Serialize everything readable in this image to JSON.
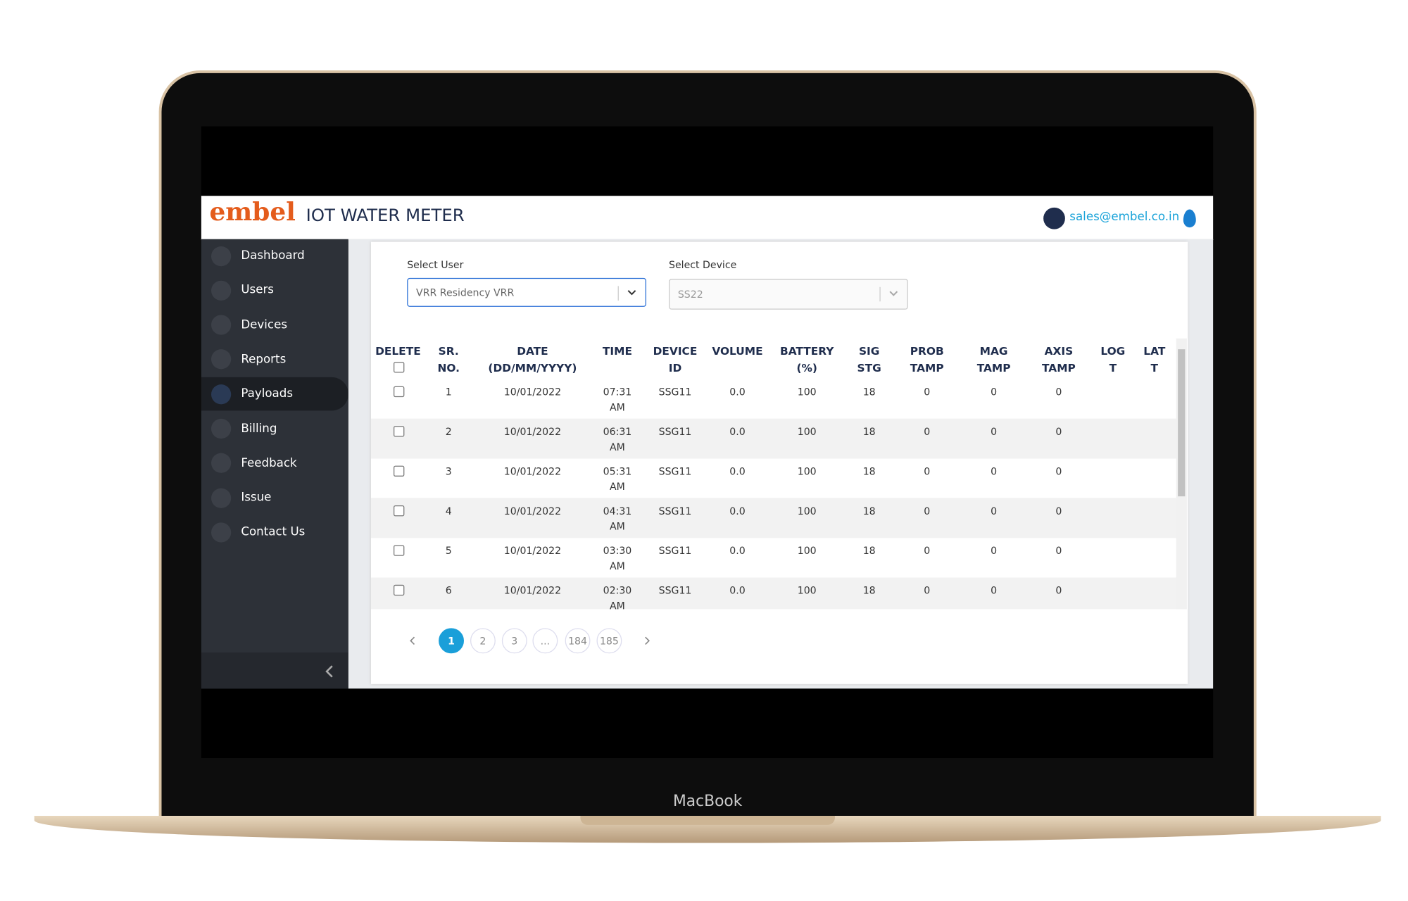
{
  "header": {
    "logo": "embel",
    "title": "IOT WATER METER",
    "email": "sales@embel.co.in"
  },
  "sidebar": {
    "items": [
      "Dashboard",
      "Users",
      "Devices",
      "Reports",
      "Payloads",
      "Billing",
      "Feedback",
      "Issue",
      "Contact Us"
    ],
    "active": "Payloads"
  },
  "filters": {
    "user_label": "Select User",
    "user_value": "VRR Residency VRR",
    "device_label": "Select Device",
    "device_value": "SS22"
  },
  "table": {
    "headers": [
      "DELETE",
      "SR.\nNO.",
      "DATE\n(DD/MM/YYYY)",
      "TIME",
      "DEVICE\nID",
      "VOLUME",
      "BATTERY\n(%)",
      "SIG\nSTG",
      "PROB\nTAMP",
      "MAG\nTAMP",
      "AXIS\nTAMP",
      "LOG\nT",
      "LAT\nT"
    ],
    "rows": [
      [
        "1",
        "10/01/2022",
        "07:31 AM",
        "SSG11",
        "0.0",
        "100",
        "18",
        "0",
        "0",
        "0"
      ],
      [
        "2",
        "10/01/2022",
        "06:31 AM",
        "SSG11",
        "0.0",
        "100",
        "18",
        "0",
        "0",
        "0"
      ],
      [
        "3",
        "10/01/2022",
        "05:31 AM",
        "SSG11",
        "0.0",
        "100",
        "18",
        "0",
        "0",
        "0"
      ],
      [
        "4",
        "10/01/2022",
        "04:31 AM",
        "SSG11",
        "0.0",
        "100",
        "18",
        "0",
        "0",
        "0"
      ],
      [
        "5",
        "10/01/2022",
        "03:30 AM",
        "SSG11",
        "0.0",
        "100",
        "18",
        "0",
        "0",
        "0"
      ],
      [
        "6",
        "10/01/2022",
        "02:30 AM",
        "SSG11",
        "0.0",
        "100",
        "18",
        "0",
        "0",
        "0"
      ]
    ]
  },
  "pagination": {
    "pages": [
      "1",
      "2",
      "3",
      "...",
      "184",
      "185"
    ],
    "current": "1"
  },
  "device_label": "MacBook"
}
